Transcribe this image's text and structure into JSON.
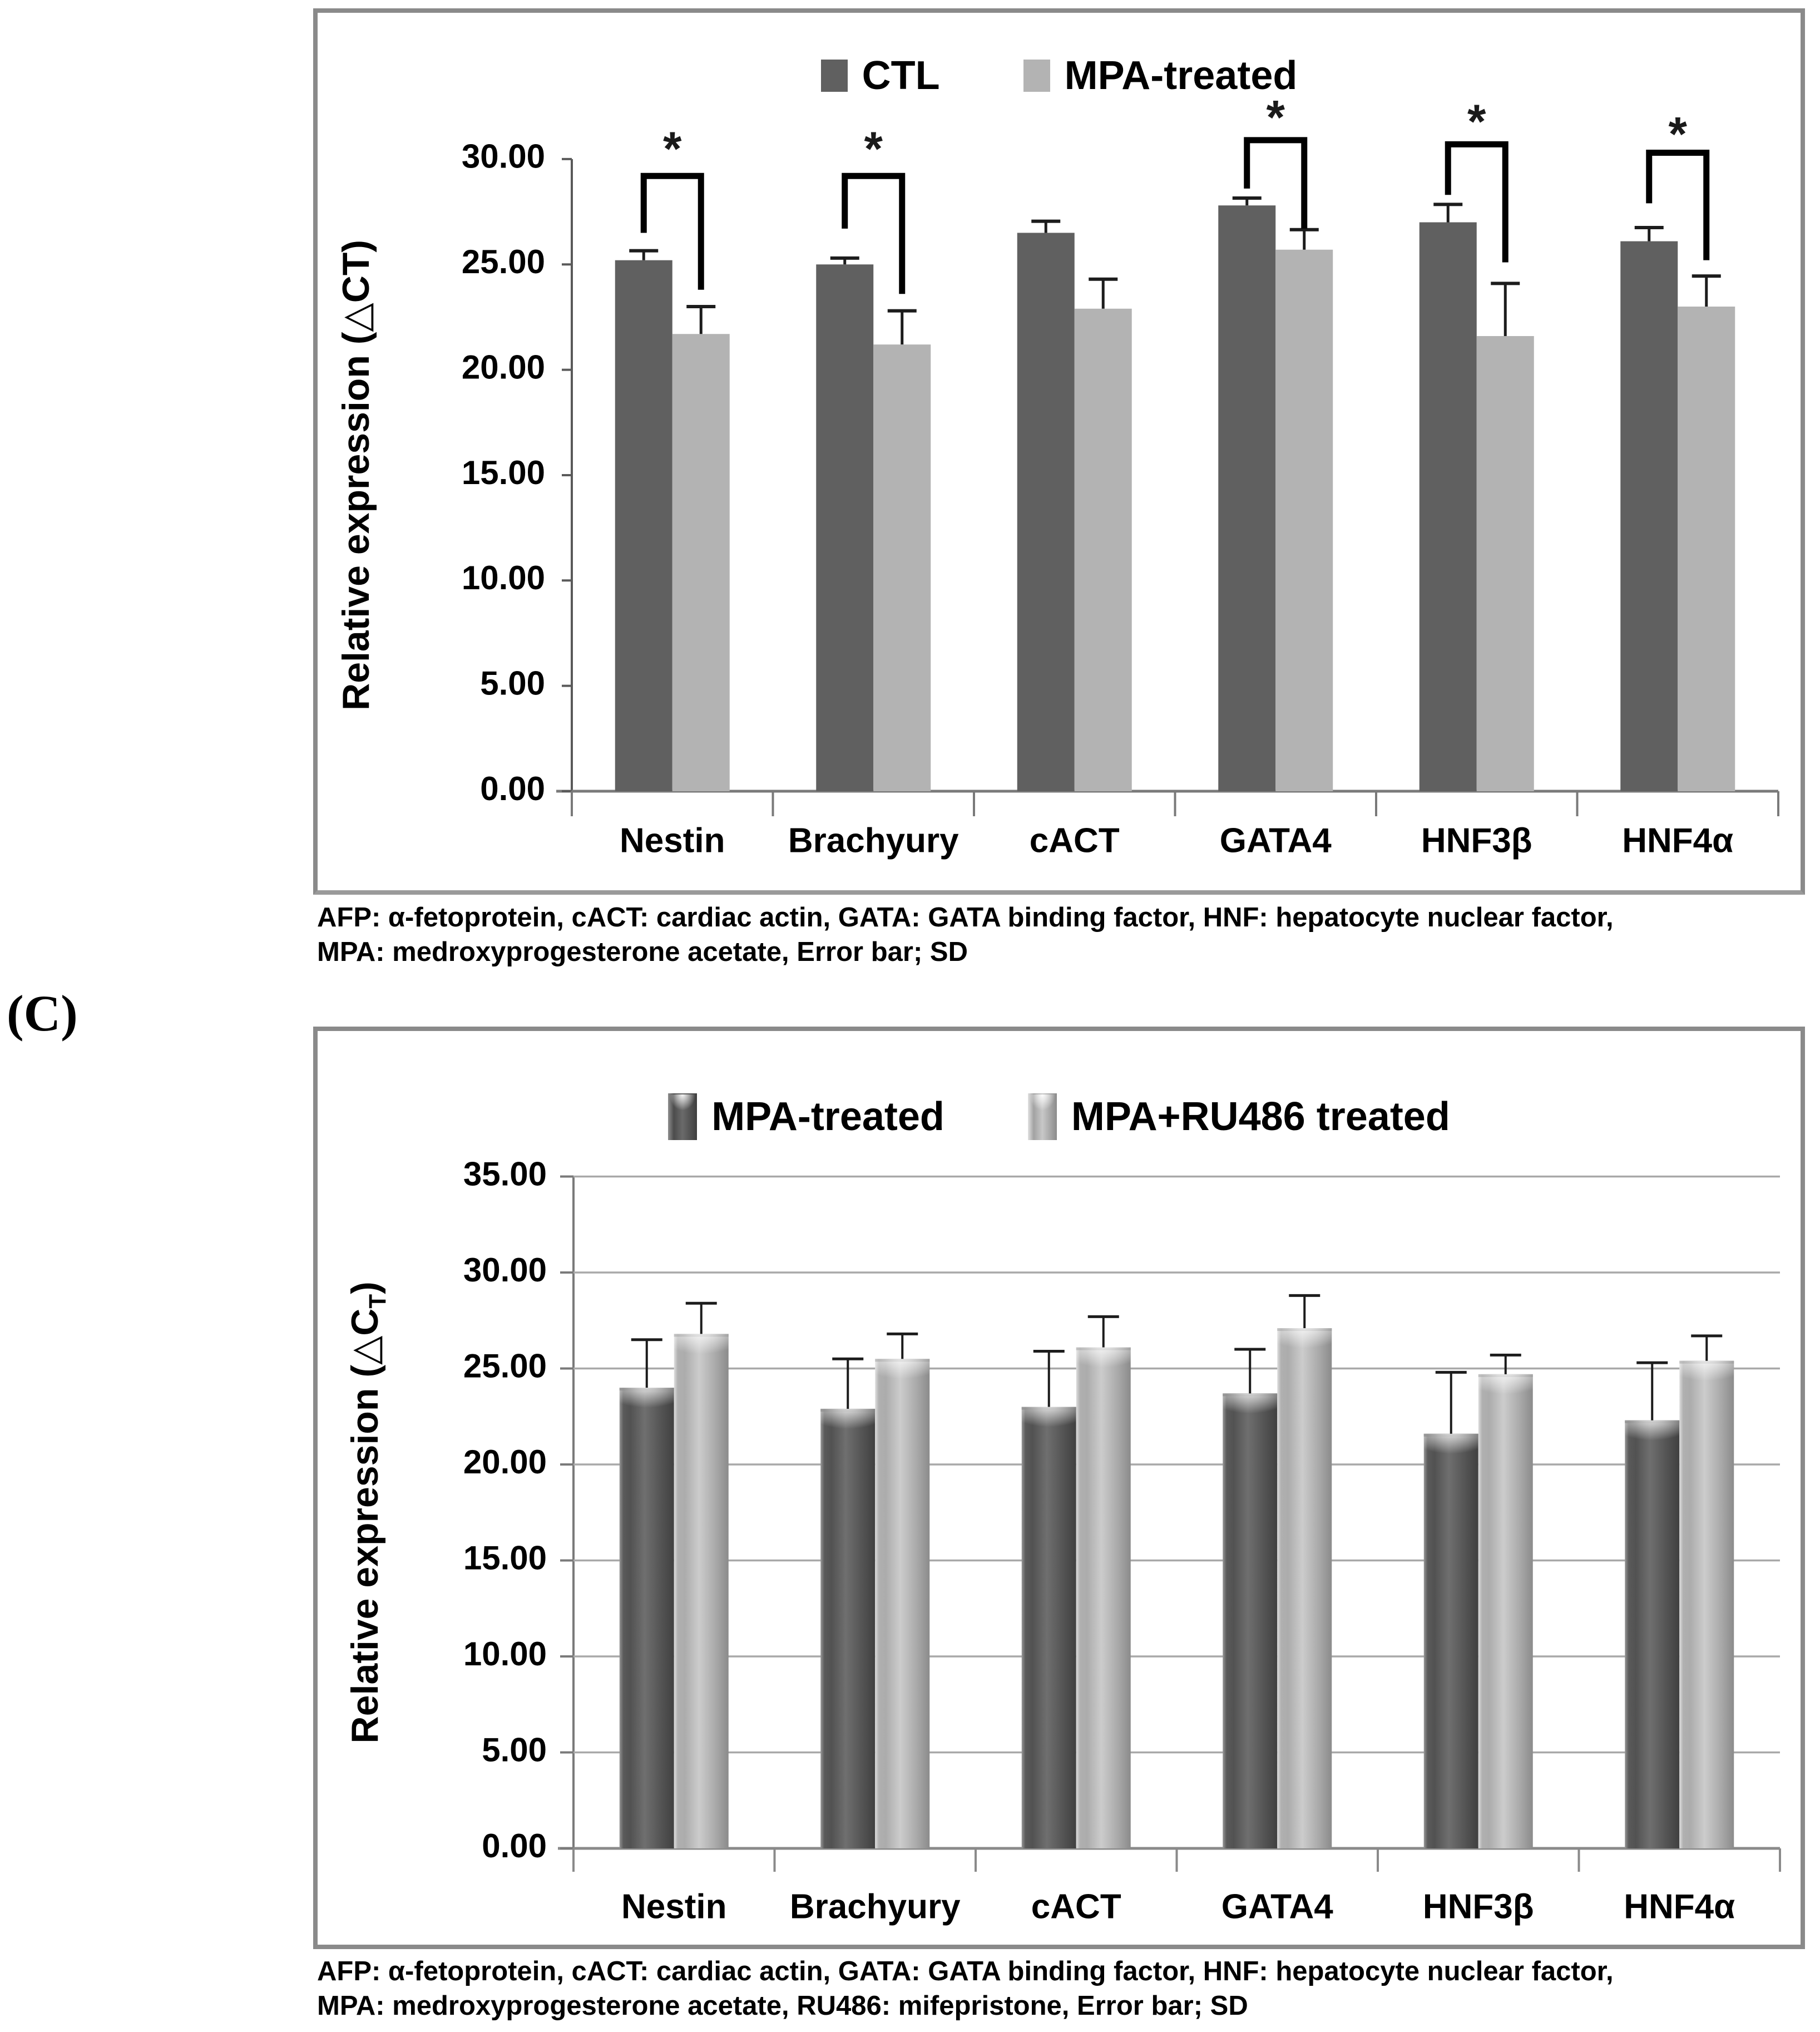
{
  "figure_label": "(C)",
  "panels": {
    "a": {
      "caption": {
        "line1": "AFP: α-fetoprotein, cACT: cardiac actin, GATA: GATA binding factor, HNF: hepatocyte nuclear factor,",
        "line2": "MPA: medroxyprogesterone acetate, Error bar; SD"
      }
    },
    "b": {
      "caption": {
        "line1": "AFP: α-fetoprotein, cACT: cardiac actin, GATA: GATA binding factor, HNF: hepatocyte nuclear factor,",
        "line2": "MPA: medroxyprogesterone acetate, RU486: mifepristone, Error bar; SD"
      }
    }
  },
  "chart_data": [
    {
      "id": "panel_a",
      "type": "bar",
      "title": "",
      "categories": [
        "Nestin",
        "Brachyury",
        "cACT",
        "GATA4",
        "HNF3β",
        "HNF4α"
      ],
      "series": [
        {
          "name": "CTL",
          "color": "#606060",
          "swatch_style": "flat",
          "values": [
            25.2,
            25.0,
            26.5,
            27.8,
            27.0,
            26.1
          ],
          "errors": [
            0.45,
            0.3,
            0.55,
            0.35,
            0.85,
            0.65
          ]
        },
        {
          "name": "MPA-treated",
          "color": "#b3b3b3",
          "swatch_style": "flat",
          "values": [
            21.7,
            21.2,
            22.9,
            25.7,
            21.6,
            23.0
          ],
          "errors": [
            1.3,
            1.6,
            1.4,
            0.95,
            2.5,
            1.45
          ]
        }
      ],
      "ylabel": "Relative expression (△CT)",
      "xlabel": "",
      "ylim": [
        0,
        30
      ],
      "y_ticks": [
        "0.00",
        "5.00",
        "10.00",
        "15.00",
        "20.00",
        "25.00",
        "30.00"
      ],
      "grid": false,
      "legend_position": "top-center",
      "significance": [
        {
          "group": 0,
          "symbol": "*",
          "bar_y": 29.2,
          "left_drop_to": 26.5,
          "right_drop_to": 23.8,
          "star_y": 30.6
        },
        {
          "group": 1,
          "symbol": "*",
          "bar_y": 29.2,
          "left_drop_to": 26.7,
          "right_drop_to": 23.6,
          "star_y": 30.6
        },
        {
          "group": 3,
          "symbol": "*",
          "bar_y": 30.9,
          "left_drop_to": 28.6,
          "right_drop_to": 26.7,
          "star_y": 32.1
        },
        {
          "group": 4,
          "symbol": "*",
          "bar_y": 30.7,
          "left_drop_to": 28.3,
          "right_drop_to": 25.1,
          "star_y": 31.9
        },
        {
          "group": 5,
          "symbol": "*",
          "bar_y": 30.3,
          "left_drop_to": 27.9,
          "right_drop_to": 25.2,
          "star_y": 31.3
        }
      ]
    },
    {
      "id": "panel_b",
      "type": "bar",
      "title": "",
      "categories": [
        "Nestin",
        "Brachyury",
        "cACT",
        "GATA4",
        "HNF3β",
        "HNF4α"
      ],
      "series": [
        {
          "name": "MPA-treated",
          "swatch_style": "3d-dark",
          "values": [
            24.0,
            22.9,
            23.0,
            23.7,
            21.6,
            22.3
          ],
          "errors": [
            2.5,
            2.6,
            2.9,
            2.3,
            3.2,
            3.0
          ]
        },
        {
          "name": "MPA+RU486 treated",
          "swatch_style": "3d-light",
          "values": [
            26.8,
            25.5,
            26.1,
            27.1,
            24.7,
            25.4
          ],
          "errors": [
            1.6,
            1.3,
            1.6,
            1.7,
            1.0,
            1.3
          ]
        }
      ],
      "ylabel_parts": {
        "prefix": "Relative expression (△C",
        "subscript": "T",
        "suffix": ")"
      },
      "xlabel": "",
      "ylim": [
        0,
        35
      ],
      "y_ticks": [
        "0.00",
        "5.00",
        "10.00",
        "15.00",
        "20.00",
        "25.00",
        "30.00",
        "35.00"
      ],
      "grid": true,
      "legend_position": "top-center"
    }
  ]
}
